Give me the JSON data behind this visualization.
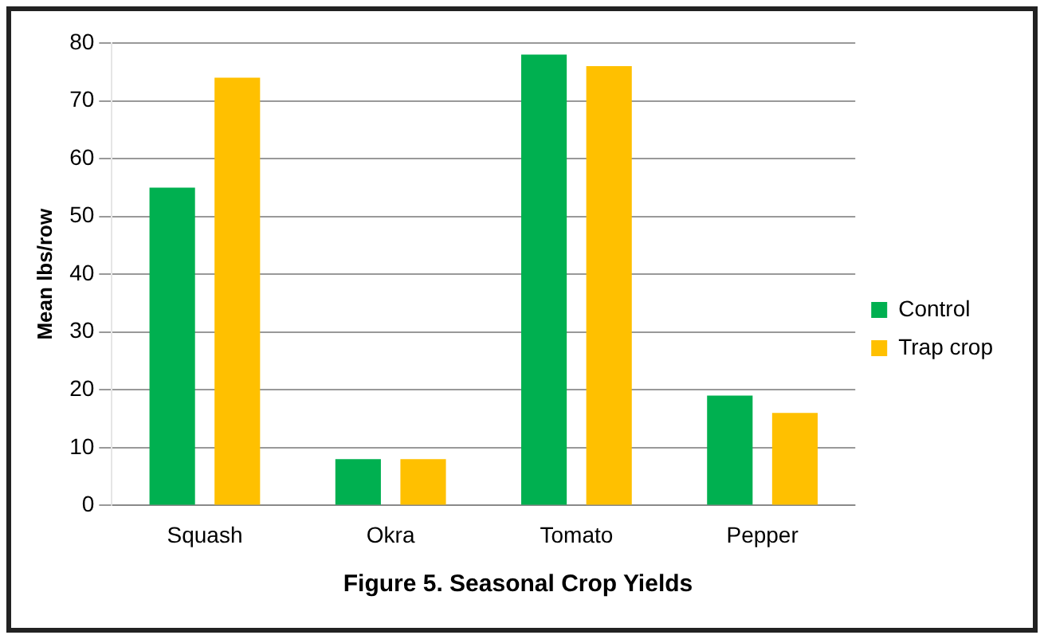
{
  "chart_data": {
    "type": "bar",
    "title": "Figure 5. Seasonal Crop Yields",
    "ylabel": "Mean lbs/row",
    "categories": [
      "Squash",
      "Okra",
      "Tomato",
      "Pepper"
    ],
    "series": [
      {
        "name": "Control",
        "color": "#00b050",
        "values": [
          55,
          8,
          78,
          19
        ]
      },
      {
        "name": "Trap crop",
        "color": "#ffc000",
        "values": [
          74,
          8,
          76,
          16
        ]
      }
    ],
    "ylim": [
      0,
      80
    ],
    "yticks": [
      0,
      10,
      20,
      30,
      40,
      50,
      60,
      70,
      80
    ],
    "grid": "y",
    "legend": "right"
  }
}
